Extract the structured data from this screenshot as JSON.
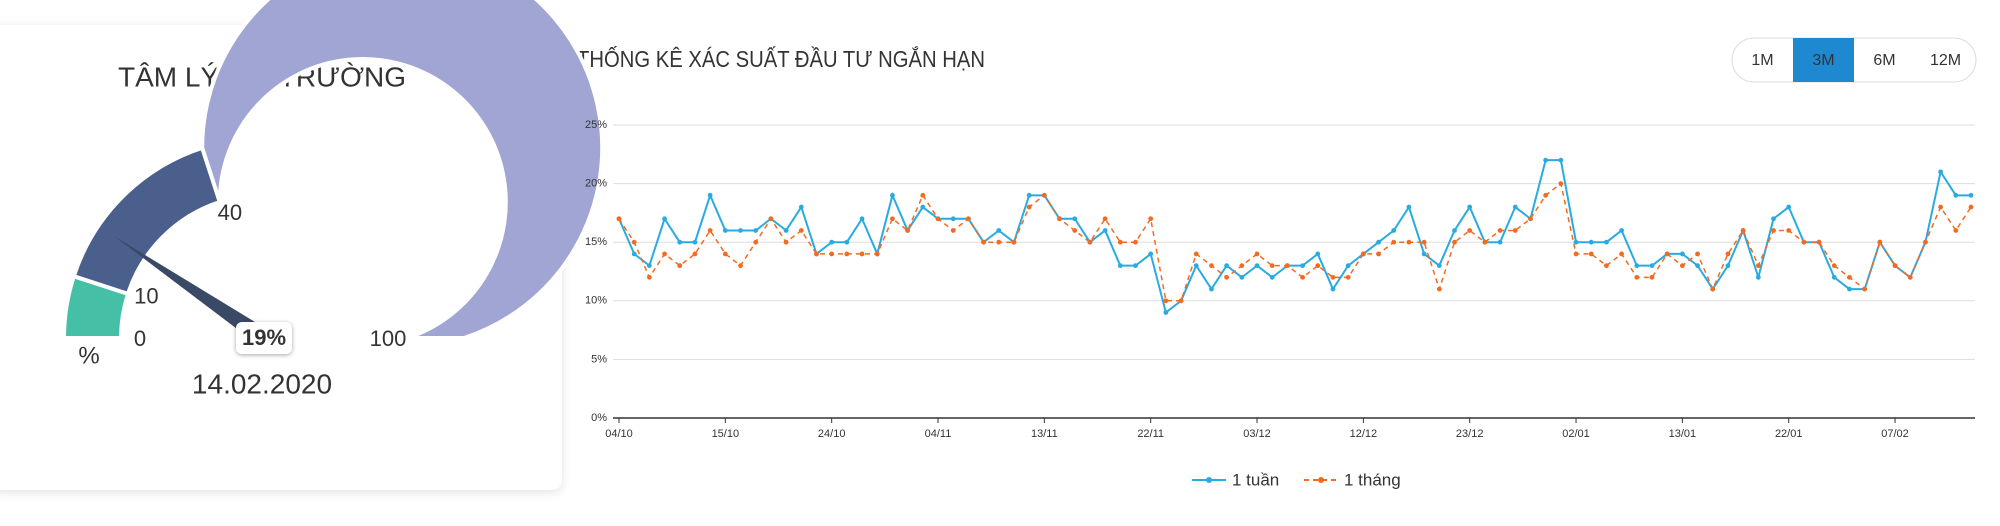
{
  "chart_data": [
    {
      "type": "gauge",
      "title": "TÂM LÝ THỊ TRƯỜNG",
      "range": [
        0,
        100
      ],
      "bands": [
        {
          "to": 10,
          "color": "#45bfa6"
        },
        {
          "to": 40,
          "color": "#4a5f8c"
        },
        {
          "to": 100,
          "color": "#a0a5d3"
        }
      ],
      "ticks": [
        0,
        10,
        40,
        100
      ],
      "unit": "%",
      "values": [
        19
      ],
      "value_labels": [
        "19%"
      ],
      "needle_color": "#3a4a66",
      "date": "14.02.2020"
    },
    {
      "type": "line",
      "title": "THỐNG KÊ XÁC SUẤT ĐẦU TƯ NGẮN HẠN",
      "categories": [
        "04/10",
        null,
        null,
        null,
        null,
        null,
        null,
        "15/10",
        null,
        null,
        null,
        null,
        null,
        null,
        "24/10",
        null,
        null,
        null,
        null,
        null,
        null,
        "04/11",
        null,
        null,
        null,
        null,
        null,
        null,
        "13/11",
        null,
        null,
        null,
        null,
        null,
        null,
        "22/11",
        null,
        null,
        null,
        null,
        null,
        null,
        "03/12",
        null,
        null,
        null,
        null,
        null,
        null,
        "12/12",
        null,
        null,
        null,
        null,
        null,
        null,
        "23/12",
        null,
        null,
        null,
        null,
        null,
        null,
        "02/01",
        null,
        null,
        null,
        null,
        null,
        null,
        "13/01",
        null,
        null,
        null,
        null,
        null,
        null,
        "22/01",
        null,
        null,
        null,
        null,
        null,
        null,
        "07/02",
        null,
        null,
        null,
        null,
        null
      ],
      "series": [
        {
          "name": "1 tuần",
          "color": "#29abe2",
          "dashed": false,
          "values": [
            17,
            14,
            13,
            17,
            15,
            15,
            19,
            16,
            16,
            16,
            17,
            16,
            18,
            14,
            15,
            15,
            17,
            14,
            19,
            16,
            18,
            17,
            17,
            17,
            15,
            16,
            15,
            19,
            19,
            17,
            17,
            15,
            16,
            13,
            13,
            14,
            9,
            10,
            13,
            11,
            13,
            12,
            13,
            12,
            13,
            13,
            14,
            11,
            13,
            14,
            15,
            16,
            18,
            14,
            13,
            16,
            18,
            15,
            15,
            18,
            17,
            22,
            22,
            15,
            15,
            15,
            16,
            13,
            13,
            14,
            14,
            13,
            11,
            13,
            16,
            12,
            17,
            18,
            15,
            15,
            12,
            11,
            11,
            15,
            13,
            12,
            15,
            21,
            19,
            19
          ]
        },
        {
          "name": "1 tháng",
          "color": "#f26b21",
          "dashed": true,
          "values": [
            17,
            15,
            12,
            14,
            13,
            14,
            16,
            14,
            13,
            15,
            17,
            15,
            16,
            14,
            14,
            14,
            14,
            14,
            17,
            16,
            19,
            17,
            16,
            17,
            15,
            15,
            15,
            18,
            19,
            17,
            16,
            15,
            17,
            15,
            15,
            17,
            10,
            10,
            14,
            13,
            12,
            13,
            14,
            13,
            13,
            12,
            13,
            12,
            12,
            14,
            14,
            15,
            15,
            15,
            11,
            15,
            16,
            15,
            16,
            16,
            17,
            19,
            20,
            14,
            14,
            13,
            14,
            12,
            12,
            14,
            13,
            14,
            11,
            14,
            16,
            13,
            16,
            16,
            15,
            15,
            13,
            12,
            11,
            15,
            13,
            12,
            15,
            18,
            16,
            18
          ]
        }
      ],
      "ylim": [
        0,
        25
      ],
      "yticks": [
        {
          "value": 0,
          "label": "0%"
        },
        {
          "value": 5,
          "label": "5%"
        },
        {
          "value": 10,
          "label": "10%"
        },
        {
          "value": 15,
          "label": "15%"
        },
        {
          "value": 20,
          "label": "20%"
        },
        {
          "value": 25,
          "label": "25%"
        }
      ],
      "grid": true,
      "legend": "bottom"
    }
  ],
  "controls": {
    "periods": [
      "1M",
      "3M",
      "6M",
      "12M"
    ],
    "active_index": 1
  }
}
